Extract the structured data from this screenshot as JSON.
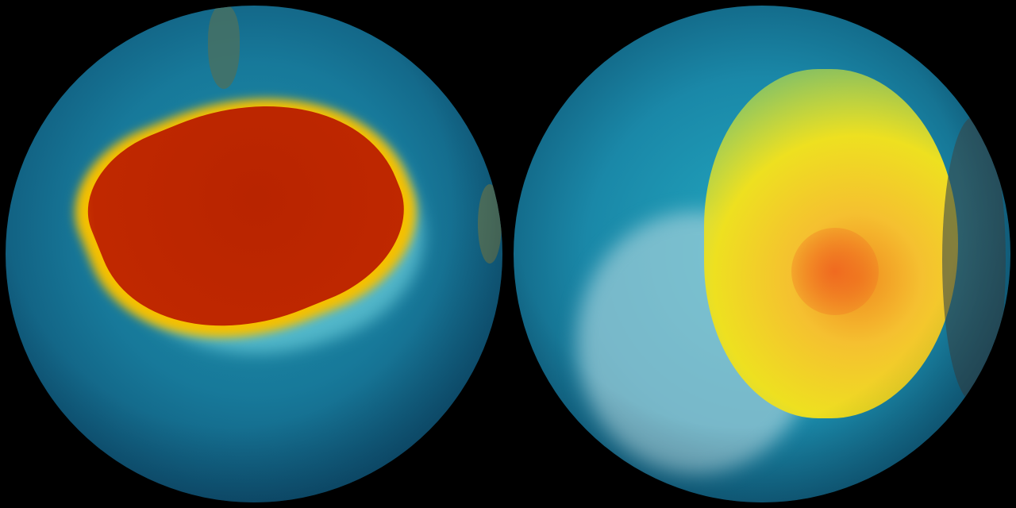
{
  "image": {
    "left_globe": {
      "hot_color": "#c02800",
      "edge_color": "#ffd000",
      "ocean_color": "#17799a"
    },
    "right_globe": {
      "warm_color": "#f2e020",
      "core_color": "#f08020",
      "ocean_color": "#1a88a8"
    }
  }
}
